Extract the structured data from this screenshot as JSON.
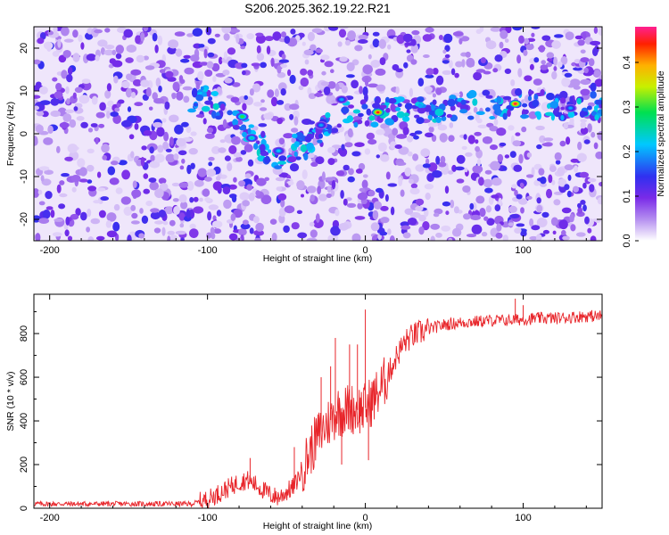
{
  "title": "S206.2025.362.19.22.R21",
  "chart_data": [
    {
      "type": "heatmap",
      "xlabel": "Height of straight line (km)",
      "ylabel": "Frequency (Hz)",
      "xlim": [
        -210,
        150
      ],
      "ylim": [
        -25,
        25
      ],
      "xticks": [
        -200,
        -100,
        0,
        100
      ],
      "yticks": [
        -20,
        -10,
        0,
        10,
        20
      ],
      "colorbar": {
        "label": "Normalized spectral amplitude",
        "range": [
          0.0,
          0.48
        ],
        "ticks": [
          "0.0",
          "0.1",
          "0.2",
          "0.3",
          "0.4"
        ],
        "colormap": "rainbow (white-violet-blue-cyan-green-yellow-red-magenta)"
      },
      "ridge": [
        {
          "x": -100,
          "y": 8
        },
        {
          "x": -80,
          "y": 4
        },
        {
          "x": -70,
          "y": -2
        },
        {
          "x": -55,
          "y": -5
        },
        {
          "x": -35,
          "y": -2
        },
        {
          "x": -20,
          "y": 3
        },
        {
          "x": -10,
          "y": 5
        },
        {
          "x": 0,
          "y": 5
        },
        {
          "x": 10,
          "y": 5
        },
        {
          "x": 40,
          "y": 6
        },
        {
          "x": 95,
          "y": 7
        },
        {
          "x": 150,
          "y": 6
        }
      ],
      "peaks": [
        {
          "x": 8,
          "y": 5,
          "value": 0.45
        },
        {
          "x": 95,
          "y": 7,
          "value": 0.46
        },
        {
          "x": -78,
          "y": 4,
          "value": 0.3
        },
        {
          "x": -72,
          "y": -1,
          "value": 0.25
        },
        {
          "x": -55,
          "y": -4,
          "value": 0.22
        },
        {
          "x": -28,
          "y": 2,
          "value": 0.2
        },
        {
          "x": -15,
          "y": 8,
          "value": 0.2
        },
        {
          "x": 130,
          "y": 6,
          "value": 0.2
        }
      ]
    },
    {
      "type": "line",
      "xlabel": "Height of straight line (km)",
      "ylabel": "SNR (10 * v/v)",
      "xlim": [
        -210,
        150
      ],
      "ylim": [
        0,
        980
      ],
      "xticks": [
        -200,
        -100,
        0,
        100
      ],
      "yticks": [
        0,
        200,
        400,
        600,
        800
      ],
      "series": [
        {
          "color": "#e8252a",
          "x": [
            -210,
            -150,
            -110,
            -100,
            -90,
            -80,
            -75,
            -70,
            -60,
            -55,
            -45,
            -40,
            -35,
            -30,
            -25,
            -20,
            -18,
            -15,
            -10,
            -5,
            0,
            5,
            10,
            15,
            20,
            25,
            30,
            40,
            50,
            60,
            70,
            80,
            90,
            100,
            110,
            120,
            130,
            140,
            150
          ],
          "y": [
            20,
            20,
            20,
            40,
            80,
            120,
            130,
            110,
            60,
            50,
            100,
            180,
            260,
            330,
            380,
            420,
            450,
            440,
            460,
            450,
            460,
            500,
            550,
            620,
            700,
            760,
            790,
            820,
            840,
            850,
            855,
            860,
            860,
            865,
            870,
            870,
            875,
            880,
            880
          ]
        }
      ],
      "spikes": [
        {
          "x": -73,
          "y": 230
        },
        {
          "x": -45,
          "y": 280
        },
        {
          "x": -28,
          "y": 600
        },
        {
          "x": -22,
          "y": 650
        },
        {
          "x": -19,
          "y": 780
        },
        {
          "x": -15,
          "y": 200
        },
        {
          "x": -10,
          "y": 750
        },
        {
          "x": -5,
          "y": 750
        },
        {
          "x": 0,
          "y": 910
        },
        {
          "x": 2,
          "y": 220
        },
        {
          "x": 95,
          "y": 960
        },
        {
          "x": 100,
          "y": 930
        }
      ]
    }
  ]
}
